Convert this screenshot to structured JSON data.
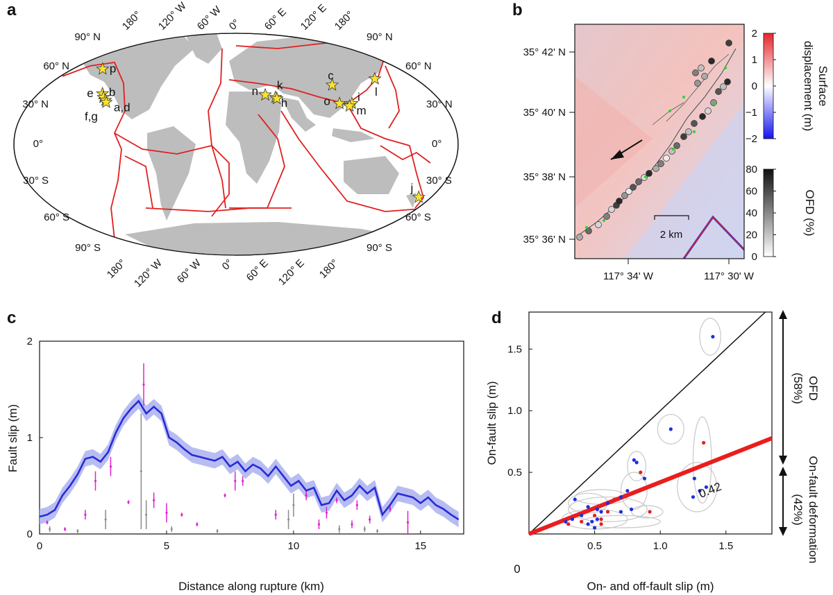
{
  "panels": {
    "a": "a",
    "b": "b",
    "c": "c",
    "d": "d"
  },
  "map_a": {
    "lon_labels": [
      "180°",
      "120° W",
      "60° W",
      "0°",
      "60° E",
      "120° E",
      "180°"
    ],
    "lat_labels_left": [
      "90° N",
      "60° N",
      "30° N",
      "0°",
      "30° S",
      "60° S",
      "90° S"
    ],
    "lat_labels_right": [
      "90° N",
      "60° N",
      "30° N",
      "0°",
      "30° S",
      "60° S",
      "90° S"
    ],
    "events": [
      {
        "label": "p",
        "lon": -150,
        "lat": 61
      },
      {
        "label": "e",
        "lon": -124,
        "lat": 41
      },
      {
        "label": "b",
        "lon": -121,
        "lat": 38
      },
      {
        "label": "a,d",
        "lon": -117.6,
        "lat": 35.7
      },
      {
        "label": "f,g",
        "lon": -116,
        "lat": 34
      },
      {
        "label": "n",
        "lon": 27,
        "lat": 40
      },
      {
        "label": "k",
        "lon": 36,
        "lat": 38
      },
      {
        "label": "h",
        "lon": 37,
        "lat": 37
      },
      {
        "label": "c",
        "lon": 94,
        "lat": 48
      },
      {
        "label": "o",
        "lon": 92,
        "lat": 33
      },
      {
        "label": "i",
        "lon": 103,
        "lat": 33
      },
      {
        "label": "m",
        "lon": 100,
        "lat": 31
      },
      {
        "label": "l",
        "lon": 142,
        "lat": 53
      },
      {
        "label": "j",
        "lon": 172,
        "lat": -43
      }
    ]
  },
  "map_b": {
    "lat_labels": [
      "35° 42' N",
      "35° 40' N",
      "35° 38' N",
      "35° 36' N"
    ],
    "lon_labels": [
      "117° 34' W",
      "117° 30' W"
    ],
    "scale_bar": "2 km",
    "colorbar_displacement": {
      "label": "Surface displacement (m)",
      "label_line1": "Surface",
      "label_line2": "displacement (m)",
      "ticks": [
        "2",
        "1",
        "0",
        "−1",
        "−2"
      ],
      "colors": [
        "#e8262a",
        "#ffffff",
        "#1515f0"
      ]
    },
    "colorbar_ofd": {
      "label": "OFD (%)",
      "ticks": [
        "80",
        "60",
        "40",
        "20",
        "0"
      ]
    }
  },
  "chart_data": [
    {
      "type": "line",
      "panel": "c",
      "xlabel": "Distance along rupture (km)",
      "ylabel": "Fault slip (m)",
      "xlim": [
        0,
        16.7
      ],
      "ylim": [
        0,
        2
      ],
      "xticks": [
        "0",
        "5",
        "10",
        "15"
      ],
      "yticks": [
        "0",
        "1",
        "2"
      ],
      "series": [
        {
          "x": [
            0,
            0.3,
            0.6,
            0.9,
            1.2,
            1.5,
            1.8,
            2.1,
            2.4,
            2.7,
            3.0,
            3.3,
            3.6,
            3.9,
            4.2,
            4.5,
            4.8,
            5.1,
            5.4,
            5.7,
            6.0,
            6.3,
            6.6,
            6.9,
            7.2,
            7.5,
            7.8,
            8.1,
            8.4,
            8.7,
            9.0,
            9.3,
            9.6,
            9.9,
            10.2,
            10.5,
            10.8,
            11.1,
            11.4,
            11.7,
            12.0,
            12.3,
            12.6,
            12.9,
            13.2,
            13.5,
            13.8,
            14.1,
            14.4,
            14.7,
            15.0,
            15.3,
            15.6,
            15.9,
            16.2,
            16.5
          ],
          "values": [
            0.18,
            0.2,
            0.25,
            0.4,
            0.5,
            0.62,
            0.78,
            0.8,
            0.75,
            0.85,
            1.05,
            1.2,
            1.3,
            1.38,
            1.25,
            1.32,
            1.25,
            1.0,
            0.95,
            0.88,
            0.82,
            0.8,
            0.78,
            0.76,
            0.8,
            0.7,
            0.75,
            0.65,
            0.72,
            0.68,
            0.6,
            0.7,
            0.6,
            0.5,
            0.55,
            0.45,
            0.48,
            0.3,
            0.32,
            0.45,
            0.35,
            0.4,
            0.5,
            0.42,
            0.48,
            0.2,
            0.3,
            0.42,
            0.4,
            0.38,
            0.32,
            0.38,
            0.3,
            0.26,
            0.2,
            0.15
          ],
          "color": "#2a2ad8",
          "band": 0.08
        }
      ],
      "magenta_errorbars": [
        {
          "x": 0.3,
          "y": 0.12,
          "e": 0.02
        },
        {
          "x": 1.0,
          "y": 0.05,
          "e": 0.02
        },
        {
          "x": 1.8,
          "y": 0.2,
          "e": 0.05
        },
        {
          "x": 2.2,
          "y": 0.55,
          "e": 0.1
        },
        {
          "x": 2.8,
          "y": 0.7,
          "e": 0.1
        },
        {
          "x": 3.5,
          "y": 0.33,
          "e": 0.02
        },
        {
          "x": 4.1,
          "y": 1.55,
          "e": 0.22
        },
        {
          "x": 4.5,
          "y": 0.35,
          "e": 0.08
        },
        {
          "x": 5.0,
          "y": 0.22,
          "e": 0.1
        },
        {
          "x": 5.6,
          "y": 0.2,
          "e": 0.02
        },
        {
          "x": 6.2,
          "y": 0.1,
          "e": 0.02
        },
        {
          "x": 7.3,
          "y": 0.4,
          "e": 0.02
        },
        {
          "x": 7.7,
          "y": 0.55,
          "e": 0.1
        },
        {
          "x": 8.0,
          "y": 0.55,
          "e": 0.05
        },
        {
          "x": 9.3,
          "y": 0.2,
          "e": 0.05
        },
        {
          "x": 10.5,
          "y": 0.4,
          "e": 0.05
        },
        {
          "x": 11.0,
          "y": 0.1,
          "e": 0.05
        },
        {
          "x": 11.3,
          "y": 0.22,
          "e": 0.06
        },
        {
          "x": 11.7,
          "y": 0.35,
          "e": 0.03
        },
        {
          "x": 12.3,
          "y": 0.1,
          "e": 0.04
        },
        {
          "x": 12.5,
          "y": 0.3,
          "e": 0.05
        },
        {
          "x": 13.0,
          "y": 0.15,
          "e": 0.04
        },
        {
          "x": 13.8,
          "y": 0.26,
          "e": 0.03
        },
        {
          "x": 14.5,
          "y": 0.12,
          "e": 0.12
        }
      ],
      "gray_errorbars": [
        {
          "x": 0.4,
          "y": 0.05,
          "e": 0.03
        },
        {
          "x": 1.5,
          "y": 0.03,
          "e": 0.02
        },
        {
          "x": 2.6,
          "y": 0.15,
          "e": 0.1
        },
        {
          "x": 4.0,
          "y": 0.65,
          "e": 0.6
        },
        {
          "x": 4.2,
          "y": 0.2,
          "e": 0.15
        },
        {
          "x": 5.2,
          "y": 0.05,
          "e": 0.03
        },
        {
          "x": 7.0,
          "y": 0.03,
          "e": 0.02
        },
        {
          "x": 9.8,
          "y": 0.15,
          "e": 0.1
        },
        {
          "x": 10.0,
          "y": 0.3,
          "e": 0.12
        },
        {
          "x": 11.8,
          "y": 0.05,
          "e": 0.04
        },
        {
          "x": 12.8,
          "y": 0.05,
          "e": 0.03
        },
        {
          "x": 13.3,
          "y": 0.03,
          "e": 0.02
        }
      ]
    },
    {
      "type": "scatter",
      "panel": "d",
      "xlabel": "On- and off-fault slip (m)",
      "ylabel": "On-fault slip (m)",
      "xlim": [
        0,
        1.85
      ],
      "ylim": [
        0,
        1.8
      ],
      "xticks": [
        "0.5",
        "1.0",
        "1.5"
      ],
      "yticks": [
        "0.5",
        "1.0",
        "1.5"
      ],
      "origin_label": "0",
      "fit_label": "0.42",
      "fit_slope": 0.42,
      "blue_points": [
        [
          0.28,
          0.1
        ],
        [
          0.35,
          0.28
        ],
        [
          0.4,
          0.15
        ],
        [
          0.45,
          0.22
        ],
        [
          0.48,
          0.1
        ],
        [
          0.5,
          0.05
        ],
        [
          0.52,
          0.12
        ],
        [
          0.52,
          0.2
        ],
        [
          0.55,
          0.18
        ],
        [
          0.6,
          0.25
        ],
        [
          0.7,
          0.3
        ],
        [
          0.75,
          0.35
        ],
        [
          0.78,
          0.2
        ],
        [
          0.8,
          0.6
        ],
        [
          0.82,
          0.58
        ],
        [
          0.88,
          0.45
        ],
        [
          1.08,
          0.85
        ],
        [
          1.25,
          0.3
        ],
        [
          1.26,
          0.45
        ],
        [
          1.3,
          0.35
        ],
        [
          1.35,
          0.38
        ],
        [
          1.4,
          1.6
        ],
        [
          0.33,
          0.12
        ],
        [
          0.45,
          0.08
        ],
        [
          0.7,
          0.18
        ]
      ],
      "red_points": [
        [
          0.3,
          0.08
        ],
        [
          0.4,
          0.1
        ],
        [
          0.5,
          0.15
        ],
        [
          0.55,
          0.12
        ],
        [
          0.6,
          0.18
        ],
        [
          0.65,
          0.28
        ],
        [
          0.85,
          0.5
        ],
        [
          0.92,
          0.18
        ],
        [
          1.33,
          0.74
        ],
        [
          0.55,
          0.08
        ]
      ],
      "ellipses": [
        [
          1.38,
          1.6,
          0.08,
          0.15
        ],
        [
          1.08,
          0.85,
          0.1,
          0.12
        ],
        [
          1.32,
          0.6,
          0.07,
          0.35
        ],
        [
          1.28,
          0.38,
          0.15,
          0.2
        ],
        [
          0.82,
          0.55,
          0.07,
          0.12
        ],
        [
          0.6,
          0.2,
          0.3,
          0.1
        ],
        [
          0.5,
          0.12,
          0.25,
          0.08
        ],
        [
          0.45,
          0.25,
          0.15,
          0.08
        ],
        [
          0.7,
          0.1,
          0.3,
          0.05
        ],
        [
          0.8,
          0.35,
          0.1,
          0.15
        ],
        [
          0.55,
          0.3,
          0.2,
          0.06
        ],
        [
          0.9,
          0.18,
          0.12,
          0.05
        ]
      ],
      "right_annotations": {
        "upper": "OFD",
        "upper_pct": "(58%)",
        "lower": "On-fault deformation",
        "lower_pct": "(42%)"
      }
    }
  ]
}
